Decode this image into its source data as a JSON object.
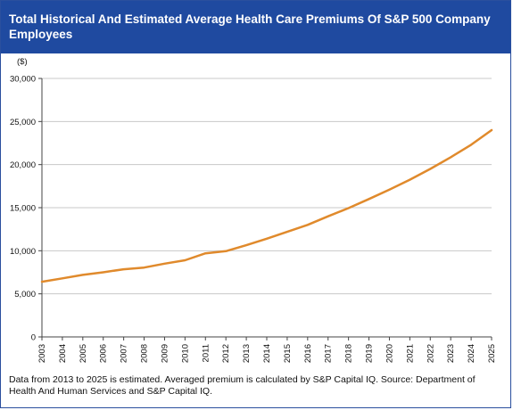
{
  "header": {
    "title": "Total Historical And Estimated Average Health Care Premiums Of S&P 500 Company Employees"
  },
  "footnote": "Data from 2013 to 2025 is estimated. Averaged premium is  calculated by S&P Capital IQ. Source: Department of Health And Human Services and S&P Capital IQ.",
  "colors": {
    "title_bar": "#1f4aa0",
    "line": "#e08a2c",
    "gridline": "#c8c8c8"
  },
  "chart_data": {
    "type": "line",
    "title": "Total Historical And Estimated Average Health Care Premiums Of S&P 500 Company Employees",
    "ylabel": "($)",
    "xlabel": "",
    "ylim": [
      0,
      30000
    ],
    "yticks": [
      0,
      5000,
      10000,
      15000,
      20000,
      25000,
      30000
    ],
    "ytick_labels": [
      "0",
      "5,000",
      "10,000",
      "15,000",
      "20,000",
      "25,000",
      "30,000"
    ],
    "grid": true,
    "x": [
      "2003",
      "2004",
      "2005",
      "2006",
      "2007",
      "2008",
      "2009",
      "2010",
      "2011",
      "2012",
      "2013",
      "2014",
      "2015",
      "2016",
      "2017",
      "2018",
      "2019",
      "2020",
      "2021",
      "2022",
      "2023",
      "2024",
      "2025"
    ],
    "series": [
      {
        "values": [
          6400,
          6800,
          7200,
          7500,
          7850,
          8050,
          8500,
          8900,
          9700,
          9950,
          10650,
          11400,
          12200,
          13000,
          14000,
          14950,
          16000,
          17100,
          18250,
          19500,
          20850,
          22300,
          24000
        ]
      }
    ]
  }
}
